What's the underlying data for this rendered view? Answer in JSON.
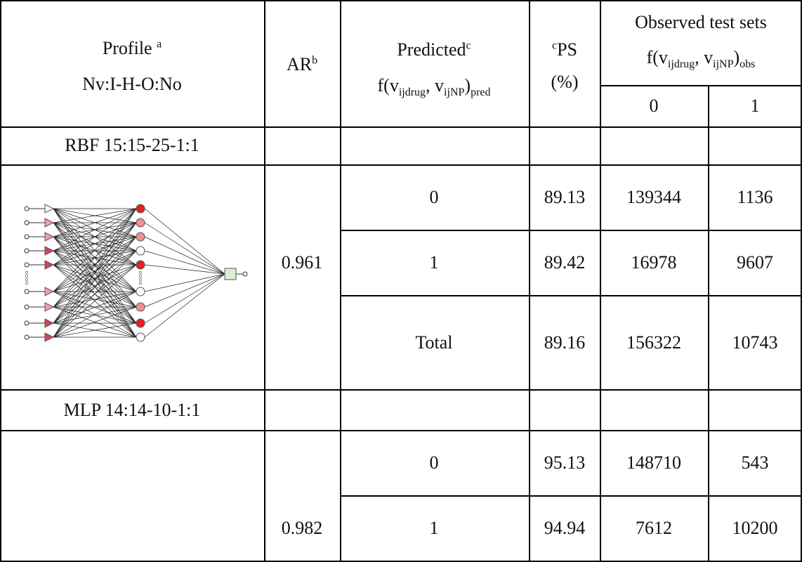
{
  "header": {
    "profile": {
      "text": "Profile",
      "sup": "a",
      "line2": "Nv:I-H-O:No"
    },
    "ar": {
      "text": "AR",
      "sup": "b"
    },
    "predicted": {
      "text": "Predicted",
      "sup": "c",
      "f_open": "f(v",
      "f_sub1": "ijdrug",
      "f_mid": ", v",
      "f_sub2": "ijNP",
      "f_close": ")",
      "f_sub3": "pred"
    },
    "ps": {
      "sup": "c",
      "text": "PS",
      "line2": "(%)"
    },
    "observed": {
      "text": "Observed test sets",
      "f_open": "f(v",
      "f_sub1": "ijdrug",
      "f_mid": ", v",
      "f_sub2": "ijNP",
      "f_close": ")",
      "f_sub3": "obs",
      "col0": "0",
      "col1": "1"
    }
  },
  "sections": [
    {
      "profile": "RBF 15:15-25-1:1",
      "ar": "0.961",
      "rows": [
        {
          "pred": "0",
          "ps": "89.13",
          "obs0": "139344",
          "obs1": "1136"
        },
        {
          "pred": "1",
          "ps": "89.42",
          "obs0": "16978",
          "obs1": "9607"
        },
        {
          "pred": "Total",
          "ps": "89.16",
          "obs0": "156322",
          "obs1": "10743"
        }
      ]
    },
    {
      "profile": "MLP 14:14-10-1:1",
      "ar": "0.982",
      "rows": [
        {
          "pred": "0",
          "ps": "95.13",
          "obs0": "148710",
          "obs1": "543"
        },
        {
          "pred": "1",
          "ps": "94.94",
          "obs0": "7612",
          "obs1": "10200"
        }
      ]
    }
  ],
  "colors": {
    "input_red": "#e0404a",
    "input_pink": "#f2a0a4",
    "hidden_red": "#e82020",
    "hidden_pink": "#f29090",
    "output_green": "#d8f0d0"
  }
}
